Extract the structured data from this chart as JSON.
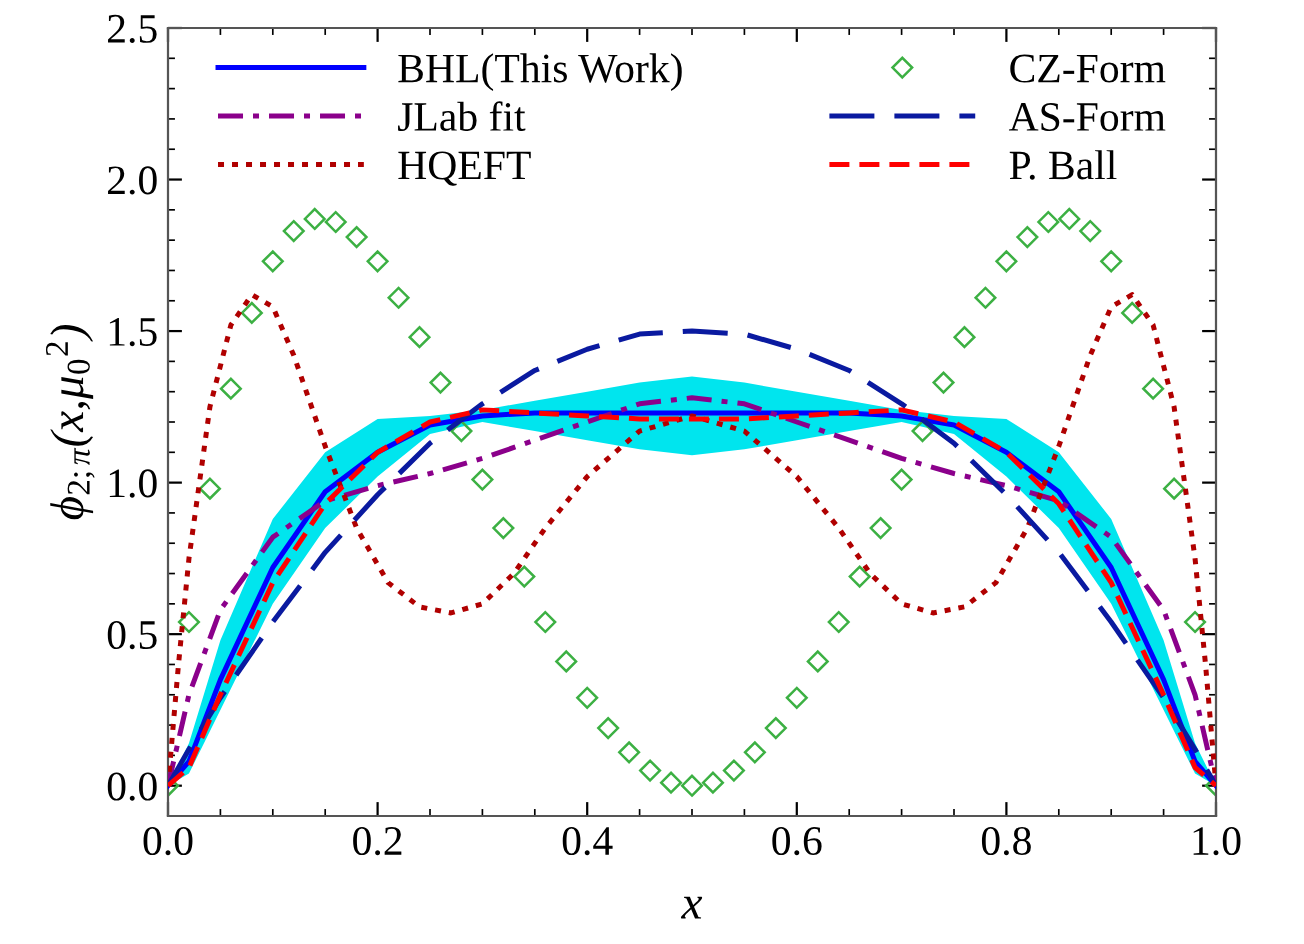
{
  "chart_data": {
    "type": "line",
    "xlabel": "x",
    "ylabel": "ϕ$_{2;π}$(x,μ$_{0}$$^{2}$)",
    "xlim": [
      0,
      1
    ],
    "ylim": [
      -0.1,
      2.5
    ],
    "xticks": [
      {
        "value": 0,
        "label": "0.0"
      },
      0.2,
      0.4,
      0.6,
      0.8,
      {
        "value": 1,
        "label": "1.0"
      }
    ],
    "yticks": [
      {
        "value": 0,
        "label": "0.0"
      },
      0.5,
      {
        "value": 1,
        "label": "1.0"
      },
      1.5,
      {
        "value": 2,
        "label": "2.0"
      },
      2.5
    ],
    "grid": false,
    "legend": "top",
    "series": [
      {
        "name": "BHL(This Work)",
        "color": "#0000ff",
        "line_style": "solid",
        "x": [
          0,
          0.02,
          0.05,
          0.1,
          0.15,
          0.2,
          0.25,
          0.3,
          0.35,
          0.4,
          0.45,
          0.5,
          0.55,
          0.6,
          0.65,
          0.7,
          0.75,
          0.8,
          0.85,
          0.9,
          0.95,
          0.98,
          1
        ],
        "values": [
          0,
          0.08,
          0.35,
          0.72,
          0.97,
          1.1,
          1.19,
          1.22,
          1.23,
          1.23,
          1.23,
          1.23,
          1.23,
          1.23,
          1.23,
          1.22,
          1.19,
          1.1,
          0.97,
          0.72,
          0.35,
          0.08,
          0
        ],
        "lower": [
          0,
          0.04,
          0.25,
          0.6,
          0.85,
          1.02,
          1.16,
          1.2,
          1.17,
          1.14,
          1.11,
          1.09,
          1.11,
          1.14,
          1.17,
          1.2,
          1.16,
          1.02,
          0.85,
          0.6,
          0.25,
          0.04,
          0
        ],
        "upper": [
          0,
          0.14,
          0.48,
          0.88,
          1.1,
          1.21,
          1.22,
          1.24,
          1.27,
          1.3,
          1.33,
          1.35,
          1.33,
          1.3,
          1.27,
          1.24,
          1.22,
          1.21,
          1.1,
          0.88,
          0.48,
          0.14,
          0
        ]
      },
      {
        "name": "JLab fit",
        "color": "#8b008b",
        "line_style": "dashdot",
        "x": [
          0,
          0.02,
          0.05,
          0.1,
          0.15,
          0.2,
          0.25,
          0.3,
          0.35,
          0.4,
          0.45,
          0.5,
          0.55,
          0.6,
          0.65,
          0.7,
          0.75,
          0.8,
          0.85,
          0.9,
          0.95,
          0.98,
          1
        ],
        "values": [
          0,
          0.3,
          0.58,
          0.82,
          0.94,
          0.99,
          1.03,
          1.08,
          1.14,
          1.2,
          1.26,
          1.28,
          1.26,
          1.2,
          1.14,
          1.08,
          1.03,
          0.99,
          0.94,
          0.82,
          0.58,
          0.3,
          0
        ]
      },
      {
        "name": "HQEFT",
        "color": "#b00000",
        "line_style": "dotted",
        "x": [
          0,
          0.01,
          0.02,
          0.04,
          0.06,
          0.08,
          0.1,
          0.12,
          0.15,
          0.18,
          0.21,
          0.24,
          0.27,
          0.3,
          0.33,
          0.36,
          0.4,
          0.45,
          0.5,
          0.55,
          0.6,
          0.64,
          0.67,
          0.7,
          0.73,
          0.76,
          0.79,
          0.82,
          0.85,
          0.88,
          0.9,
          0.92,
          0.94,
          0.96,
          0.98,
          0.99,
          1
        ],
        "values": [
          0,
          0.4,
          0.75,
          1.25,
          1.52,
          1.62,
          1.58,
          1.42,
          1.12,
          0.85,
          0.67,
          0.59,
          0.57,
          0.6,
          0.7,
          0.85,
          1.02,
          1.17,
          1.22,
          1.17,
          1.02,
          0.85,
          0.7,
          0.6,
          0.57,
          0.59,
          0.67,
          0.85,
          1.12,
          1.42,
          1.58,
          1.62,
          1.52,
          1.25,
          0.75,
          0.4,
          0
        ]
      },
      {
        "name": "CZ-Form",
        "type": "scatter",
        "color": "#3cb043",
        "marker": "diamond",
        "x": [
          0,
          0.02,
          0.04,
          0.06,
          0.08,
          0.1,
          0.12,
          0.14,
          0.16,
          0.18,
          0.2,
          0.22,
          0.24,
          0.26,
          0.28,
          0.3,
          0.32,
          0.34,
          0.36,
          0.38,
          0.4,
          0.42,
          0.44,
          0.46,
          0.48,
          0.5,
          0.52,
          0.54,
          0.56,
          0.58,
          0.6,
          0.62,
          0.64,
          0.66,
          0.68,
          0.7,
          0.72,
          0.74,
          0.76,
          0.78,
          0.8,
          0.82,
          0.84,
          0.86,
          0.88,
          0.9,
          0.92,
          0.94,
          0.96,
          0.98,
          1
        ],
        "values": [
          0,
          0.54,
          0.98,
          1.31,
          1.56,
          1.73,
          1.83,
          1.87,
          1.86,
          1.81,
          1.73,
          1.61,
          1.48,
          1.33,
          1.17,
          1.01,
          0.85,
          0.69,
          0.54,
          0.41,
          0.29,
          0.19,
          0.11,
          0.05,
          0.01,
          0,
          0.01,
          0.05,
          0.11,
          0.19,
          0.29,
          0.41,
          0.54,
          0.69,
          0.85,
          1.01,
          1.17,
          1.33,
          1.48,
          1.61,
          1.73,
          1.81,
          1.86,
          1.87,
          1.83,
          1.73,
          1.56,
          1.31,
          0.98,
          0.54,
          0
        ]
      },
      {
        "name": "AS-Form",
        "color": "#0a1aa0",
        "line_style": "longdash",
        "x": [
          0,
          0.02,
          0.05,
          0.1,
          0.15,
          0.2,
          0.25,
          0.3,
          0.35,
          0.4,
          0.45,
          0.5,
          0.55,
          0.6,
          0.65,
          0.7,
          0.75,
          0.8,
          0.85,
          0.9,
          0.95,
          0.98,
          1
        ],
        "values": [
          0,
          0.12,
          0.29,
          0.54,
          0.77,
          0.96,
          1.13,
          1.26,
          1.37,
          1.44,
          1.49,
          1.5,
          1.49,
          1.44,
          1.37,
          1.26,
          1.13,
          0.96,
          0.77,
          0.54,
          0.29,
          0.12,
          0
        ]
      },
      {
        "name": "P. Ball",
        "color": "#ff0000",
        "line_style": "dashed",
        "x": [
          0,
          0.02,
          0.05,
          0.1,
          0.15,
          0.2,
          0.25,
          0.3,
          0.35,
          0.4,
          0.45,
          0.5,
          0.55,
          0.6,
          0.65,
          0.7,
          0.75,
          0.8,
          0.85,
          0.9,
          0.95,
          0.98,
          1
        ],
        "values": [
          0,
          0.06,
          0.3,
          0.67,
          0.93,
          1.1,
          1.2,
          1.24,
          1.23,
          1.22,
          1.21,
          1.21,
          1.21,
          1.22,
          1.23,
          1.24,
          1.2,
          1.1,
          0.93,
          0.67,
          0.3,
          0.06,
          0
        ]
      }
    ]
  }
}
